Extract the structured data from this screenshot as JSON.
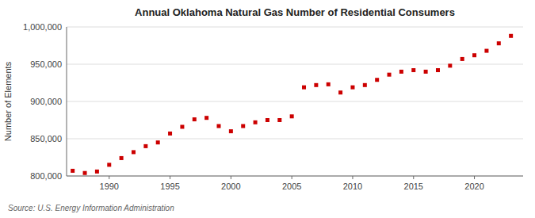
{
  "chart_data": {
    "type": "scatter",
    "title": "Annual Oklahoma Natural Gas Number of Residential Consumers",
    "y_label": "Number of Elements",
    "source": "Source: U.S. Energy Information Administration",
    "x": [
      1987,
      1988,
      1989,
      1990,
      1991,
      1992,
      1993,
      1994,
      1995,
      1996,
      1997,
      1998,
      1999,
      2000,
      2001,
      2002,
      2003,
      2004,
      2005,
      2006,
      2007,
      2008,
      2009,
      2010,
      2011,
      2012,
      2013,
      2014,
      2015,
      2016,
      2017,
      2018,
      2019,
      2020,
      2021,
      2022,
      2023
    ],
    "values": [
      807000,
      804000,
      806000,
      815000,
      824000,
      832000,
      840000,
      845000,
      857000,
      866000,
      876000,
      878000,
      867000,
      860000,
      867000,
      872000,
      875000,
      875000,
      880000,
      919000,
      922000,
      923000,
      912000,
      919000,
      922000,
      929000,
      936000,
      940000,
      942000,
      940000,
      942000,
      948000,
      957000,
      962000,
      968000,
      978000,
      988000
    ],
    "color": "#cc0000",
    "marker": "square",
    "grid": true,
    "xlim": [
      1986.5,
      2024
    ],
    "xticks": [
      1990,
      1995,
      2000,
      2005,
      2010,
      2015,
      2020
    ],
    "ylim": [
      800000,
      1000000
    ],
    "yticks": [
      {
        "value": 800000,
        "label": "800,000"
      },
      {
        "value": 850000,
        "label": "850,000"
      },
      {
        "value": 900000,
        "label": "900,000"
      },
      {
        "value": 950000,
        "label": "950,000"
      },
      {
        "value": 1000000,
        "label": "1,000,000"
      }
    ]
  }
}
